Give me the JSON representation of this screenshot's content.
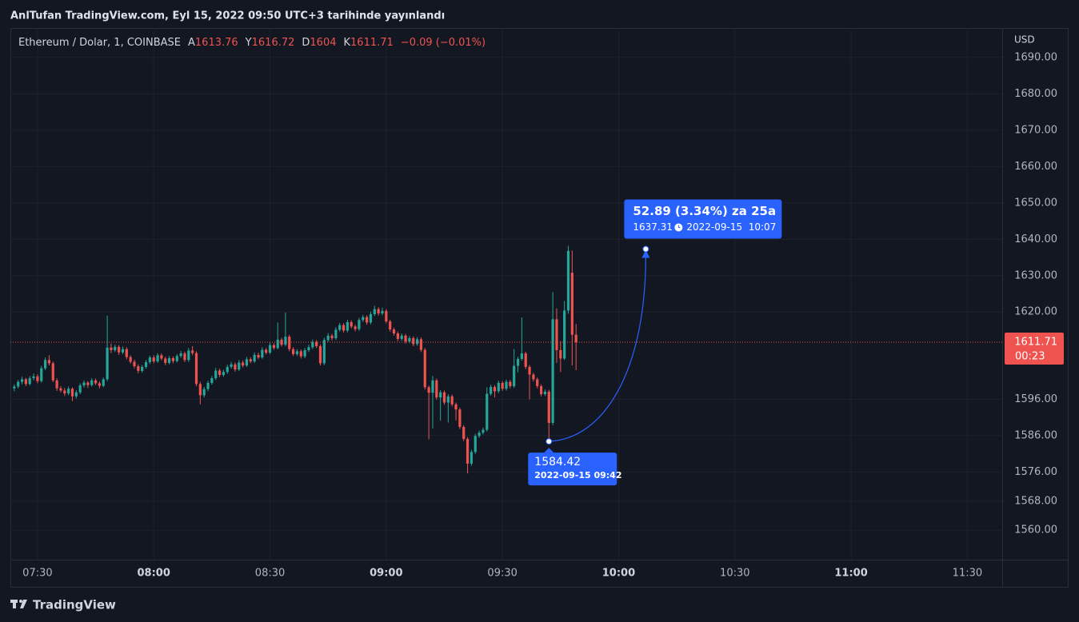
{
  "published": "AnlTufan TradingView.com, Eyl 15, 2022 09:50 UTC+3 tarihinde yayınlandı",
  "brand": "TradingView",
  "chart_data": {
    "type": "candlestick",
    "title": "Ethereum / Dolar, 1, COINBASE",
    "ohlc_labels": [
      "A",
      "Y",
      "D",
      "K"
    ],
    "change": "−0.09 (−0.01%)",
    "currency": "USD",
    "countdown": "00:23",
    "up_color": "#26a69a",
    "down_color": "#ef5350",
    "grid": true,
    "ylim": [
      1551.9,
      1698.1
    ],
    "yticks": [
      {
        "value": 1690,
        "label": "1690.00"
      },
      {
        "value": 1680,
        "label": "1680.00"
      },
      {
        "value": 1670,
        "label": "1670.00"
      },
      {
        "value": 1660,
        "label": "1660.00"
      },
      {
        "value": 1650,
        "label": "1650.00"
      },
      {
        "value": 1640,
        "label": "1640.00"
      },
      {
        "value": 1630,
        "label": "1630.00"
      },
      {
        "value": 1620,
        "label": "1620.00"
      },
      {
        "value": 1596,
        "label": "1596.00"
      },
      {
        "value": 1586,
        "label": "1586.00"
      },
      {
        "value": 1576,
        "label": "1576.00"
      },
      {
        "value": 1568,
        "label": "1568.00"
      },
      {
        "value": 1560,
        "label": "1560.00"
      }
    ],
    "xlim": [
      "07:23",
      "11:39"
    ],
    "xticks": [
      "07:30",
      "08:00",
      "08:30",
      "09:00",
      "09:30",
      "10:00",
      "10:30",
      "11:00",
      "11:30"
    ],
    "x": [
      "07:24",
      "07:25",
      "07:26",
      "07:27",
      "07:28",
      "07:29",
      "07:30",
      "07:31",
      "07:32",
      "07:33",
      "07:34",
      "07:35",
      "07:36",
      "07:37",
      "07:38",
      "07:39",
      "07:40",
      "07:41",
      "07:42",
      "07:43",
      "07:44",
      "07:45",
      "07:46",
      "07:47",
      "07:48",
      "07:49",
      "07:50",
      "07:51",
      "07:52",
      "07:53",
      "07:54",
      "07:55",
      "07:56",
      "07:57",
      "07:58",
      "07:59",
      "08:00",
      "08:01",
      "08:02",
      "08:03",
      "08:04",
      "08:05",
      "08:06",
      "08:07",
      "08:08",
      "08:09",
      "08:10",
      "08:11",
      "08:12",
      "08:13",
      "08:14",
      "08:15",
      "08:16",
      "08:17",
      "08:18",
      "08:19",
      "08:20",
      "08:21",
      "08:22",
      "08:23",
      "08:24",
      "08:25",
      "08:26",
      "08:27",
      "08:28",
      "08:29",
      "08:30",
      "08:31",
      "08:32",
      "08:33",
      "08:34",
      "08:35",
      "08:36",
      "08:37",
      "08:38",
      "08:39",
      "08:40",
      "08:41",
      "08:42",
      "08:43",
      "08:44",
      "08:45",
      "08:46",
      "08:47",
      "08:48",
      "08:49",
      "08:50",
      "08:51",
      "08:52",
      "08:53",
      "08:54",
      "08:55",
      "08:56",
      "08:57",
      "08:58",
      "08:59",
      "09:00",
      "09:01",
      "09:02",
      "09:03",
      "09:04",
      "09:05",
      "09:06",
      "09:07",
      "09:08",
      "09:09",
      "09:10",
      "09:11",
      "09:12",
      "09:13",
      "09:14",
      "09:15",
      "09:16",
      "09:17",
      "09:18",
      "09:19",
      "09:20",
      "09:21",
      "09:22",
      "09:23",
      "09:24",
      "09:25",
      "09:26",
      "09:27",
      "09:28",
      "09:29",
      "09:30",
      "09:31",
      "09:32",
      "09:33",
      "09:34",
      "09:35",
      "09:36",
      "09:37",
      "09:38",
      "09:39",
      "09:40",
      "09:41",
      "09:42",
      "09:43",
      "09:44",
      "09:45",
      "09:46",
      "09:47",
      "09:48",
      "09:49"
    ],
    "ohlc": [
      [
        1599.0,
        1600.1,
        1598.2,
        1599.5
      ],
      [
        1599.5,
        1601.3,
        1599.0,
        1600.8
      ],
      [
        1600.8,
        1602.2,
        1600.1,
        1601.5
      ],
      [
        1601.5,
        1601.9,
        1599.6,
        1600.2
      ],
      [
        1600.2,
        1602.4,
        1599.8,
        1601.8
      ],
      [
        1601.8,
        1603.1,
        1601.2,
        1602.3
      ],
      [
        1602.3,
        1602.9,
        1600.4,
        1601.0
      ],
      [
        1601.0,
        1605.2,
        1600.6,
        1604.5
      ],
      [
        1604.5,
        1607.5,
        1604.0,
        1606.8
      ],
      [
        1606.8,
        1608.1,
        1605.3,
        1605.9
      ],
      [
        1605.9,
        1606.4,
        1600.7,
        1601.2
      ],
      [
        1601.2,
        1601.8,
        1598.3,
        1599.0
      ],
      [
        1599.0,
        1599.6,
        1597.9,
        1598.4
      ],
      [
        1598.4,
        1599.1,
        1596.9,
        1597.6
      ],
      [
        1597.6,
        1599.5,
        1597.1,
        1598.9
      ],
      [
        1598.9,
        1599.3,
        1595.5,
        1596.8
      ],
      [
        1596.8,
        1598.5,
        1596.2,
        1597.9
      ],
      [
        1597.9,
        1600.4,
        1597.4,
        1599.8
      ],
      [
        1599.8,
        1601.2,
        1599.2,
        1600.6
      ],
      [
        1600.6,
        1601.0,
        1599.1,
        1599.9
      ],
      [
        1599.9,
        1601.8,
        1599.5,
        1601.2
      ],
      [
        1601.2,
        1601.7,
        1599.9,
        1600.4
      ],
      [
        1600.4,
        1600.9,
        1599.0,
        1599.7
      ],
      [
        1599.7,
        1602.0,
        1599.3,
        1601.5
      ],
      [
        1601.5,
        1619.0,
        1601.0,
        1610.2
      ],
      [
        1610.2,
        1611.3,
        1608.7,
        1609.5
      ],
      [
        1609.5,
        1611.0,
        1609.0,
        1610.4
      ],
      [
        1610.4,
        1610.9,
        1608.2,
        1608.9
      ],
      [
        1608.9,
        1610.5,
        1608.4,
        1609.8
      ],
      [
        1609.8,
        1610.3,
        1607.0,
        1607.6
      ],
      [
        1607.6,
        1608.1,
        1605.8,
        1606.3
      ],
      [
        1606.3,
        1606.9,
        1604.5,
        1605.1
      ],
      [
        1605.1,
        1605.6,
        1603.1,
        1603.8
      ],
      [
        1603.8,
        1605.4,
        1603.3,
        1604.9
      ],
      [
        1604.9,
        1606.8,
        1604.4,
        1606.2
      ],
      [
        1606.2,
        1608.0,
        1605.7,
        1607.5
      ],
      [
        1607.5,
        1608.1,
        1605.9,
        1606.4
      ],
      [
        1606.4,
        1608.7,
        1606.0,
        1608.1
      ],
      [
        1608.1,
        1608.6,
        1606.7,
        1607.2
      ],
      [
        1607.2,
        1607.7,
        1605.4,
        1606.0
      ],
      [
        1606.0,
        1607.9,
        1605.6,
        1607.3
      ],
      [
        1607.3,
        1607.8,
        1605.9,
        1606.5
      ],
      [
        1606.5,
        1608.4,
        1606.1,
        1607.9
      ],
      [
        1607.9,
        1609.3,
        1607.4,
        1608.6
      ],
      [
        1608.6,
        1609.1,
        1606.2,
        1606.8
      ],
      [
        1606.8,
        1610.1,
        1606.3,
        1609.4
      ],
      [
        1609.4,
        1610.6,
        1608.1,
        1608.7
      ],
      [
        1608.7,
        1609.2,
        1599.6,
        1600.2
      ],
      [
        1600.2,
        1600.8,
        1594.6,
        1597.1
      ],
      [
        1597.1,
        1599.4,
        1596.5,
        1598.8
      ],
      [
        1598.8,
        1601.1,
        1598.2,
        1600.5
      ],
      [
        1600.5,
        1602.4,
        1600.0,
        1601.8
      ],
      [
        1601.8,
        1604.6,
        1601.3,
        1603.9
      ],
      [
        1603.9,
        1604.4,
        1602.1,
        1602.7
      ],
      [
        1602.7,
        1604.1,
        1602.2,
        1603.5
      ],
      [
        1603.5,
        1605.5,
        1603.0,
        1604.9
      ],
      [
        1604.9,
        1606.3,
        1604.4,
        1605.6
      ],
      [
        1605.6,
        1606.1,
        1603.6,
        1604.2
      ],
      [
        1604.2,
        1606.8,
        1603.8,
        1606.1
      ],
      [
        1606.1,
        1606.7,
        1604.8,
        1605.3
      ],
      [
        1605.3,
        1607.6,
        1604.9,
        1607.0
      ],
      [
        1607.0,
        1607.5,
        1605.9,
        1606.4
      ],
      [
        1606.4,
        1608.9,
        1606.0,
        1608.2
      ],
      [
        1608.2,
        1608.8,
        1607.0,
        1607.5
      ],
      [
        1607.5,
        1610.3,
        1607.1,
        1609.6
      ],
      [
        1609.6,
        1610.1,
        1608.3,
        1608.8
      ],
      [
        1608.8,
        1611.6,
        1608.4,
        1610.9
      ],
      [
        1610.9,
        1611.4,
        1609.6,
        1610.1
      ],
      [
        1610.1,
        1617.1,
        1609.7,
        1612.4
      ],
      [
        1612.4,
        1612.9,
        1610.5,
        1611.0
      ],
      [
        1611.0,
        1619.8,
        1610.6,
        1613.2
      ],
      [
        1613.2,
        1613.7,
        1609.2,
        1609.8
      ],
      [
        1609.8,
        1610.3,
        1607.9,
        1608.4
      ],
      [
        1608.4,
        1609.8,
        1607.9,
        1609.2
      ],
      [
        1609.2,
        1609.7,
        1607.2,
        1607.8
      ],
      [
        1607.8,
        1610.1,
        1607.3,
        1609.5
      ],
      [
        1609.5,
        1611.0,
        1609.0,
        1610.3
      ],
      [
        1610.3,
        1612.4,
        1609.8,
        1611.8
      ],
      [
        1611.8,
        1612.3,
        1610.1,
        1610.6
      ],
      [
        1610.6,
        1611.1,
        1605.3,
        1605.9
      ],
      [
        1605.9,
        1612.9,
        1605.4,
        1612.3
      ],
      [
        1612.3,
        1614.2,
        1611.8,
        1613.5
      ],
      [
        1613.5,
        1614.0,
        1612.2,
        1612.8
      ],
      [
        1612.8,
        1615.8,
        1612.3,
        1615.1
      ],
      [
        1615.1,
        1617.0,
        1614.6,
        1616.4
      ],
      [
        1616.4,
        1616.9,
        1614.3,
        1614.9
      ],
      [
        1614.9,
        1617.8,
        1614.4,
        1617.2
      ],
      [
        1617.2,
        1617.7,
        1615.5,
        1616.0
      ],
      [
        1616.0,
        1616.5,
        1614.7,
        1615.3
      ],
      [
        1615.3,
        1618.4,
        1614.8,
        1617.8
      ],
      [
        1617.8,
        1619.2,
        1617.3,
        1618.6
      ],
      [
        1618.6,
        1619.1,
        1616.5,
        1617.1
      ],
      [
        1617.1,
        1620.1,
        1616.6,
        1619.4
      ],
      [
        1619.4,
        1621.7,
        1618.9,
        1620.8
      ],
      [
        1620.8,
        1621.3,
        1619.0,
        1619.6
      ],
      [
        1619.6,
        1621.2,
        1619.1,
        1620.3
      ],
      [
        1620.3,
        1620.8,
        1616.9,
        1617.4
      ],
      [
        1617.4,
        1617.9,
        1614.6,
        1615.2
      ],
      [
        1615.2,
        1615.7,
        1613.5,
        1614.1
      ],
      [
        1614.1,
        1614.6,
        1612.0,
        1612.6
      ],
      [
        1612.6,
        1614.1,
        1612.1,
        1613.5
      ],
      [
        1613.5,
        1614.0,
        1611.3,
        1611.9
      ],
      [
        1611.9,
        1613.4,
        1611.4,
        1612.8
      ],
      [
        1612.8,
        1613.3,
        1610.6,
        1611.2
      ],
      [
        1611.2,
        1613.1,
        1610.7,
        1612.5
      ],
      [
        1612.5,
        1613.0,
        1609.0,
        1609.6
      ],
      [
        1609.6,
        1610.1,
        1598.7,
        1599.3
      ],
      [
        1599.3,
        1599.8,
        1585.0,
        1597.8
      ],
      [
        1597.8,
        1602.4,
        1588.0,
        1601.2
      ],
      [
        1601.2,
        1601.7,
        1595.9,
        1596.5
      ],
      [
        1596.5,
        1598.5,
        1590.1,
        1597.9
      ],
      [
        1597.9,
        1598.4,
        1594.5,
        1595.1
      ],
      [
        1595.1,
        1597.4,
        1589.6,
        1596.8
      ],
      [
        1596.8,
        1597.3,
        1594.0,
        1594.6
      ],
      [
        1594.6,
        1595.1,
        1590.2,
        1593.2
      ],
      [
        1593.2,
        1593.7,
        1587.8,
        1588.4
      ],
      [
        1588.4,
        1588.9,
        1584.5,
        1585.1
      ],
      [
        1585.1,
        1585.6,
        1575.6,
        1578.3
      ],
      [
        1578.3,
        1582.1,
        1577.7,
        1581.5
      ],
      [
        1581.5,
        1586.5,
        1581.0,
        1585.9
      ],
      [
        1585.9,
        1587.4,
        1585.4,
        1586.8
      ],
      [
        1586.8,
        1588.2,
        1586.3,
        1587.6
      ],
      [
        1587.6,
        1599.3,
        1587.1,
        1597.5
      ],
      [
        1597.5,
        1600.0,
        1597.0,
        1599.4
      ],
      [
        1599.4,
        1599.9,
        1596.5,
        1598.2
      ],
      [
        1598.2,
        1601.1,
        1597.7,
        1600.5
      ],
      [
        1600.5,
        1601.0,
        1598.3,
        1598.9
      ],
      [
        1598.9,
        1601.4,
        1598.4,
        1600.8
      ],
      [
        1600.8,
        1601.3,
        1599.0,
        1599.6
      ],
      [
        1599.6,
        1609.8,
        1599.1,
        1605.2
      ],
      [
        1605.2,
        1607.7,
        1603.4,
        1607.1
      ],
      [
        1607.1,
        1618.5,
        1606.6,
        1608.6
      ],
      [
        1608.6,
        1609.1,
        1604.3,
        1604.9
      ],
      [
        1604.9,
        1605.4,
        1596.0,
        1602.8
      ],
      [
        1602.8,
        1603.3,
        1600.9,
        1601.5
      ],
      [
        1601.5,
        1602.0,
        1599.0,
        1599.6
      ],
      [
        1599.6,
        1600.1,
        1596.8,
        1597.4
      ],
      [
        1597.4,
        1598.7,
        1596.9,
        1598.1
      ],
      [
        1598.1,
        1598.6,
        1584.42,
        1589.5
      ],
      [
        1589.5,
        1625.5,
        1588.9,
        1618.0
      ],
      [
        1618.0,
        1621.0,
        1606.0,
        1609.5
      ],
      [
        1609.5,
        1612.0,
        1603.5,
        1607.2
      ],
      [
        1607.2,
        1623.0,
        1606.8,
        1620.4
      ],
      [
        1620.4,
        1638.2,
        1619.5,
        1636.8
      ],
      [
        1630.8,
        1636.9,
        1605.3,
        1613.76
      ],
      [
        1613.76,
        1616.72,
        1604.0,
        1611.71
      ]
    ],
    "forecast": {
      "color": "#2962ff",
      "from_price": 1584.42,
      "from_time": "2022-09-15 09:42",
      "to_price": 1637.31,
      "to_time": "2022-09-15  10:07",
      "change": "52.89 (3.34%) za 25a"
    }
  }
}
